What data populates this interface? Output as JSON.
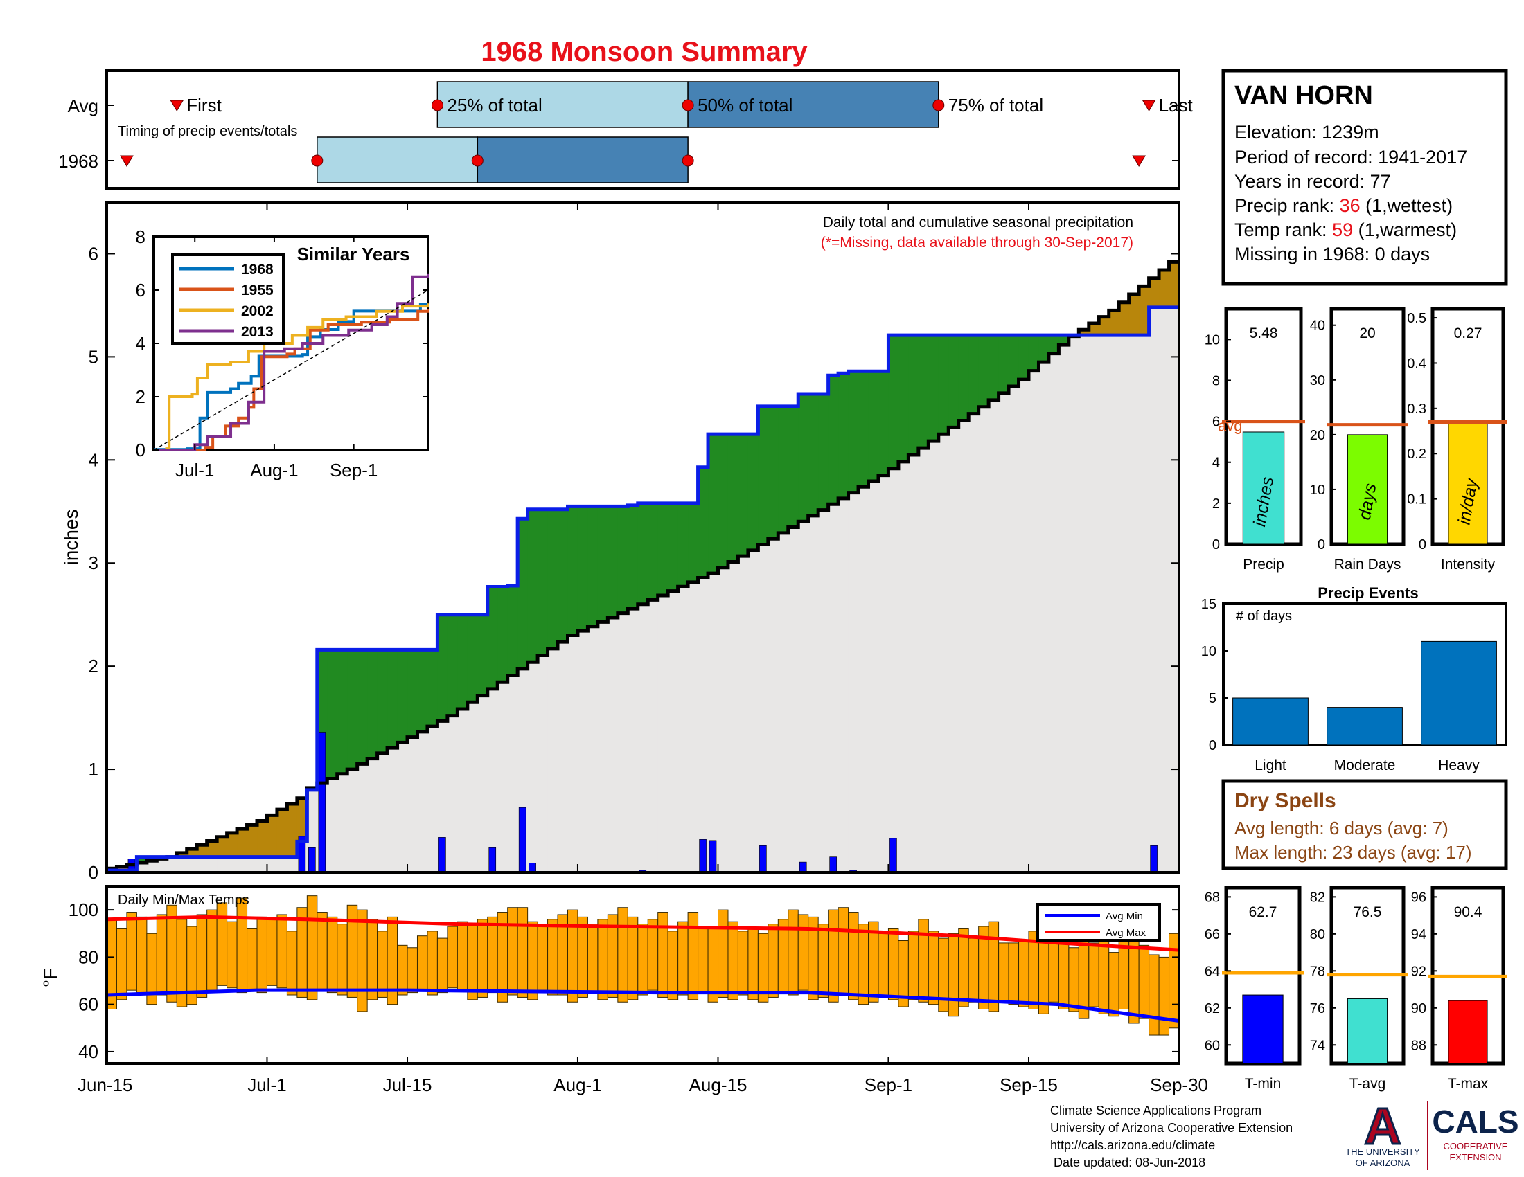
{
  "title": "1968 Monsoon Summary",
  "station": {
    "name": "VAN HORN",
    "elevation_label": "Elevation: 1239m",
    "period_label": "Period of record: 1941-2017",
    "years_label": "Years in record: 77",
    "precip_rank_prefix": "Precip rank: ",
    "precip_rank": "36",
    "precip_rank_suffix": " (1,wettest)",
    "temp_rank_prefix": "Temp rank: ",
    "temp_rank": "59",
    "temp_rank_suffix": " (1,warmest)",
    "missing_label": "Missing in 1968: 0 days"
  },
  "timing": {
    "row_labels": [
      "Avg",
      "1968"
    ],
    "subtitle": "Timing of precip events/totals",
    "marker_labels": [
      "First",
      "25% of total",
      "50% of total",
      "75% of total",
      "Last"
    ],
    "avg": {
      "first": "2018-06-22",
      "p25": "2018-07-18",
      "p50": "2018-08-12",
      "p75": "2018-09-06",
      "last": "2018-09-27"
    },
    "y1968": {
      "first": "2018-06-17",
      "p25": "2018-07-06",
      "p50": "2018-07-22",
      "p75": "2018-08-12",
      "last": "2018-09-26"
    }
  },
  "main": {
    "header": "Daily total and cumulative seasonal precipitation",
    "note": "(*=Missing, data available through 30-Sep-2017)",
    "ylabel": "inches",
    "y_ticks": [
      "0",
      "1",
      "2",
      "3",
      "4",
      "5",
      "6"
    ],
    "x_ticks": [
      "Jun-15",
      "Jul-1",
      "Jul-15",
      "Aug-1",
      "Aug-15",
      "Sep-1",
      "Sep-15",
      "Sep-30"
    ]
  },
  "inset": {
    "title": "Similar Years",
    "y_ticks": [
      "0",
      "2",
      "4",
      "6",
      "8"
    ],
    "x_ticks": [
      "Jul-1",
      "Aug-1",
      "Sep-1"
    ]
  },
  "temps": {
    "label": "Daily Min/Max Temps",
    "ylabel": "°F",
    "y_ticks": [
      "40",
      "60",
      "80",
      "100"
    ],
    "legend": [
      "Avg Min",
      "Avg Max"
    ]
  },
  "stats": {
    "precip": {
      "label": "Precip",
      "value": "5.48",
      "unit": "inches",
      "avg_label": "avg",
      "y_ticks": [
        "0",
        "2",
        "4",
        "6",
        "8",
        "10"
      ]
    },
    "rain_days": {
      "label": "Rain Days",
      "value": "20",
      "unit": "days",
      "y_ticks": [
        "0",
        "10",
        "20",
        "30",
        "40"
      ]
    },
    "intensity": {
      "label": "Intensity",
      "value": "0.27",
      "unit": "in/day",
      "y_ticks": [
        "0",
        "0.1",
        "0.2",
        "0.3",
        "0.4",
        "0.5"
      ]
    }
  },
  "events": {
    "title": "Precip Events",
    "ylabel": "# of days",
    "y_ticks": [
      "0",
      "5",
      "10",
      "15"
    ]
  },
  "dry_spells": {
    "title": "Dry Spells",
    "avg_length": "Avg length: 6 days (avg: 7)",
    "max_length": "Max length: 23 days (avg: 17)"
  },
  "temp_stats": {
    "tmin": {
      "label": "T-min",
      "value": "62.7",
      "y_ticks": [
        "60",
        "62",
        "64",
        "66",
        "68"
      ]
    },
    "tavg": {
      "label": "T-avg",
      "value": "76.5",
      "y_ticks": [
        "74",
        "76",
        "78",
        "80",
        "82"
      ]
    },
    "tmax": {
      "label": "T-max",
      "value": "90.4",
      "y_ticks": [
        "88",
        "90",
        "92",
        "94",
        "96"
      ]
    }
  },
  "footer": {
    "lines": [
      "Climate Science Applications Program",
      "University of Arizona Cooperative Extension",
      "http://cals.arizona.edu/climate",
      " Date updated: 08-Jun-2018"
    ],
    "logo_a": "A",
    "ua_line1": "THE UNIVERSITY",
    "ua_line2": "OF ARIZONA",
    "cals": "CALS",
    "coop1": "COOPERATIVE",
    "coop2": "EXTENSION"
  },
  "colors": {
    "title": "#e8111a",
    "cum_1968": "#0a1ee8",
    "avg_cum": "#000000",
    "above_fill": "#218a21",
    "below_fill": "#b8860b",
    "light_blue": "#add8e6",
    "steel_blue": "#4682b4",
    "temp_bar": "#ffa500",
    "avg_line_stat": "#d95319",
    "temp_avg_line": "#ffa500",
    "precip_bar": "#40e0d0",
    "raindays_bar": "#7cfc00",
    "intensity_bar": "#ffd700",
    "event_bar": "#0072bd",
    "tmin_bar": "#0000ff",
    "tavg_bar": "#40e0d0",
    "tmax_bar": "#ff0000",
    "dry_spell": "#8b4513"
  },
  "chart_data": [
    {
      "type": "area",
      "title": "Daily total and cumulative seasonal precipitation",
      "ylabel": "inches",
      "x_range": [
        "2018-06-15",
        "2018-09-30"
      ],
      "ylim": [
        0,
        6.5
      ],
      "series": [
        {
          "name": "1968",
          "points": [
            [
              "2018-06-15",
              0.02
            ],
            [
              "2018-06-17",
              0.02
            ],
            [
              "2018-06-18",
              0.15
            ],
            [
              "2018-07-03",
              0.15
            ],
            [
              "2018-07-04",
              0.3
            ],
            [
              "2018-07-05",
              0.8
            ],
            [
              "2018-07-06",
              2.16
            ],
            [
              "2018-07-17",
              2.16
            ],
            [
              "2018-07-18",
              2.5
            ],
            [
              "2018-07-22",
              2.5
            ],
            [
              "2018-07-23",
              2.77
            ],
            [
              "2018-07-25",
              2.78
            ],
            [
              "2018-07-26",
              3.43
            ],
            [
              "2018-07-27",
              3.52
            ],
            [
              "2018-07-31",
              3.55
            ],
            [
              "2018-08-06",
              3.56
            ],
            [
              "2018-08-07",
              3.58
            ],
            [
              "2018-08-12",
              3.58
            ],
            [
              "2018-08-13",
              3.93
            ],
            [
              "2018-08-14",
              4.25
            ],
            [
              "2018-08-18",
              4.25
            ],
            [
              "2018-08-19",
              4.52
            ],
            [
              "2018-08-22",
              4.52
            ],
            [
              "2018-08-23",
              4.64
            ],
            [
              "2018-08-25",
              4.64
            ],
            [
              "2018-08-26",
              4.82
            ],
            [
              "2018-08-27",
              4.84
            ],
            [
              "2018-08-28",
              4.86
            ],
            [
              "2018-08-31",
              4.86
            ],
            [
              "2018-09-01",
              5.21
            ],
            [
              "2018-09-26",
              5.21
            ],
            [
              "2018-09-27",
              5.48
            ],
            [
              "2018-09-30",
              5.48
            ]
          ]
        },
        {
          "name": "Average",
          "points": [
            [
              "2018-06-15",
              0.02
            ],
            [
              "2018-06-22",
              0.15
            ],
            [
              "2018-07-01",
              0.5
            ],
            [
              "2018-07-05",
              0.72
            ],
            [
              "2018-07-06",
              0.82
            ],
            [
              "2018-07-10",
              1.0
            ],
            [
              "2018-07-20",
              1.52
            ],
            [
              "2018-08-01",
              2.3
            ],
            [
              "2018-08-15",
              2.9
            ],
            [
              "2018-09-01",
              3.85
            ],
            [
              "2018-09-15",
              4.78
            ],
            [
              "2018-09-20",
              5.2
            ],
            [
              "2018-09-24",
              5.45
            ],
            [
              "2018-09-30",
              5.92
            ]
          ]
        }
      ],
      "daily_bars": {
        "name": "Daily total",
        "dates": [
          "2018-06-17",
          "2018-07-04",
          "2018-07-05",
          "2018-07-06",
          "2018-07-18",
          "2018-07-23",
          "2018-07-26",
          "2018-07-27",
          "2018-08-07",
          "2018-08-13",
          "2018-08-14",
          "2018-08-19",
          "2018-08-23",
          "2018-08-26",
          "2018-08-28",
          "2018-09-01",
          "2018-09-27"
        ],
        "values": [
          0.13,
          0.35,
          0.24,
          1.36,
          0.34,
          0.24,
          0.63,
          0.09,
          0.02,
          0.32,
          0.31,
          0.26,
          0.1,
          0.15,
          0.02,
          0.33,
          0.26
        ]
      }
    },
    {
      "type": "line",
      "title": "Similar Years",
      "x_range": [
        "2018-06-15",
        "2018-09-30"
      ],
      "ylim": [
        0,
        8
      ],
      "series": [
        {
          "name": "1968",
          "points": [
            [
              "2018-06-15",
              0.02
            ],
            [
              "2018-06-28",
              0.05
            ],
            [
              "2018-07-03",
              1.2
            ],
            [
              "2018-07-06",
              2.16
            ],
            [
              "2018-07-15",
              2.3
            ],
            [
              "2018-07-18",
              2.5
            ],
            [
              "2018-07-23",
              2.77
            ],
            [
              "2018-07-26",
              3.52
            ],
            [
              "2018-08-12",
              3.58
            ],
            [
              "2018-08-14",
              4.25
            ],
            [
              "2018-08-19",
              4.52
            ],
            [
              "2018-08-26",
              4.82
            ],
            [
              "2018-09-01",
              5.21
            ],
            [
              "2018-09-27",
              5.48
            ],
            [
              "2018-09-30",
              5.48
            ]
          ]
        },
        {
          "name": "1955",
          "points": [
            [
              "2018-06-15",
              0.0
            ],
            [
              "2018-07-05",
              0.1
            ],
            [
              "2018-07-08",
              0.5
            ],
            [
              "2018-07-13",
              0.9
            ],
            [
              "2018-07-18",
              1.2
            ],
            [
              "2018-07-22",
              1.6
            ],
            [
              "2018-07-24",
              2.3
            ],
            [
              "2018-07-27",
              3.5
            ],
            [
              "2018-08-06",
              3.6
            ],
            [
              "2018-08-09",
              3.8
            ],
            [
              "2018-08-15",
              4.5
            ],
            [
              "2018-08-22",
              4.7
            ],
            [
              "2018-09-04",
              4.8
            ],
            [
              "2018-09-15",
              4.9
            ],
            [
              "2018-09-26",
              5.2
            ],
            [
              "2018-09-30",
              5.3
            ]
          ]
        },
        {
          "name": "2002",
          "points": [
            [
              "2018-06-15",
              0.0
            ],
            [
              "2018-06-20",
              0.05
            ],
            [
              "2018-06-21",
              2.0
            ],
            [
              "2018-06-30",
              2.1
            ],
            [
              "2018-07-02",
              2.7
            ],
            [
              "2018-07-06",
              3.2
            ],
            [
              "2018-07-15",
              3.3
            ],
            [
              "2018-07-22",
              3.7
            ],
            [
              "2018-07-28",
              4.0
            ],
            [
              "2018-08-08",
              4.3
            ],
            [
              "2018-08-14",
              4.6
            ],
            [
              "2018-08-20",
              4.9
            ],
            [
              "2018-08-29",
              5.0
            ],
            [
              "2018-09-10",
              5.2
            ],
            [
              "2018-09-20",
              5.4
            ],
            [
              "2018-09-30",
              5.5
            ]
          ]
        },
        {
          "name": "2013",
          "points": [
            [
              "2018-06-15",
              0.0
            ],
            [
              "2018-07-01",
              0.2
            ],
            [
              "2018-07-06",
              0.5
            ],
            [
              "2018-07-15",
              1.0
            ],
            [
              "2018-07-22",
              1.8
            ],
            [
              "2018-07-28",
              3.7
            ],
            [
              "2018-08-05",
              3.8
            ],
            [
              "2018-08-12",
              4.0
            ],
            [
              "2018-08-20",
              4.3
            ],
            [
              "2018-08-30",
              4.5
            ],
            [
              "2018-09-08",
              4.7
            ],
            [
              "2018-09-14",
              5.0
            ],
            [
              "2018-09-18",
              5.5
            ],
            [
              "2018-09-24",
              6.5
            ],
            [
              "2018-09-30",
              6.6
            ]
          ]
        },
        {
          "name": "Average",
          "points": [
            [
              "2018-06-15",
              0.0
            ],
            [
              "2018-09-30",
              6.0
            ]
          ]
        }
      ]
    },
    {
      "type": "bar",
      "title": "Daily Min/Max Temps",
      "ylabel": "°F",
      "x_range": [
        "2018-06-15",
        "2018-09-30"
      ],
      "ylim": [
        35,
        110
      ],
      "daily_max": [
        96,
        92,
        99,
        97,
        90,
        98,
        102,
        96,
        93,
        98,
        100,
        103,
        95,
        105,
        92,
        97,
        96,
        98,
        91,
        101,
        106,
        99,
        97,
        94,
        102,
        100,
        96,
        91,
        97,
        85,
        84,
        89,
        91,
        88,
        93,
        95,
        94,
        96,
        97,
        99,
        101,
        101,
        95,
        93,
        96,
        98,
        100,
        97,
        94,
        96,
        98,
        101,
        97,
        94,
        96,
        99,
        91,
        95,
        99,
        93,
        92,
        100,
        95,
        91,
        92,
        90,
        94,
        96,
        100,
        98,
        97,
        94,
        100,
        101,
        99,
        94,
        95,
        90,
        92,
        87,
        91,
        96,
        91,
        88,
        90,
        92,
        88,
        93,
        95,
        86,
        86,
        87,
        91,
        92,
        87,
        88,
        84,
        95,
        86,
        93,
        82,
        90,
        90,
        85,
        81,
        80,
        90
      ],
      "daily_min": [
        58,
        62,
        66,
        65,
        60,
        64,
        61,
        59,
        60,
        63,
        66,
        68,
        67,
        65,
        66,
        65,
        68,
        67,
        64,
        63,
        62,
        66,
        65,
        64,
        63,
        57,
        62,
        63,
        60,
        64,
        65,
        66,
        64,
        65,
        67,
        66,
        62,
        63,
        65,
        61,
        64,
        63,
        62,
        66,
        64,
        64,
        61,
        63,
        65,
        62,
        63,
        61,
        62,
        64,
        66,
        63,
        62,
        64,
        62,
        65,
        61,
        63,
        62,
        64,
        62,
        61,
        63,
        65,
        64,
        66,
        62,
        63,
        61,
        64,
        62,
        60,
        61,
        63,
        62,
        59,
        62,
        61,
        60,
        57,
        55,
        59,
        61,
        58,
        57,
        61,
        60,
        59,
        58,
        56,
        61,
        58,
        57,
        54,
        59,
        56,
        55,
        58,
        52,
        54,
        47,
        47,
        50
      ],
      "avg_max": [
        [
          0,
          96
        ],
        [
          10,
          97
        ],
        [
          20,
          96
        ],
        [
          35,
          94
        ],
        [
          50,
          93
        ],
        [
          70,
          92
        ],
        [
          85,
          89
        ],
        [
          95,
          86
        ],
        [
          107,
          83
        ]
      ],
      "avg_min": [
        [
          0,
          64
        ],
        [
          15,
          66
        ],
        [
          30,
          66
        ],
        [
          55,
          65
        ],
        [
          70,
          65
        ],
        [
          85,
          62
        ],
        [
          95,
          60
        ],
        [
          107,
          53
        ]
      ]
    },
    {
      "type": "bar",
      "categories": [
        "Precip",
        "Rain Days",
        "Intensity"
      ],
      "values": [
        5.48,
        20,
        0.27
      ],
      "averages": [
        6.0,
        21.8,
        0.27
      ],
      "ylims": [
        [
          0,
          11.5
        ],
        [
          0,
          43
        ],
        [
          0,
          0.52
        ]
      ]
    },
    {
      "type": "bar",
      "title": "Precip Events",
      "ylabel": "# of days",
      "categories": [
        "Light",
        "Moderate",
        "Heavy"
      ],
      "values": [
        5,
        4,
        11
      ],
      "ylim": [
        0,
        15
      ]
    },
    {
      "type": "bar",
      "categories": [
        "T-min",
        "T-avg",
        "T-max"
      ],
      "values": [
        62.7,
        76.5,
        90.4
      ],
      "averages": [
        63.9,
        77.8,
        91.7
      ],
      "ylims": [
        [
          59,
          68.5
        ],
        [
          73,
          82.5
        ],
        [
          87,
          96.5
        ]
      ]
    }
  ]
}
